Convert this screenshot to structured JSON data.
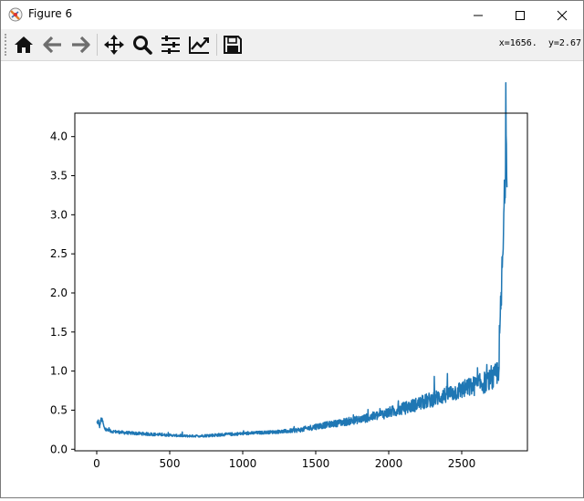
{
  "window": {
    "title": "Figure 6",
    "controls": {
      "minimize": "minimize-icon",
      "maximize": "maximize-icon",
      "close": "close-icon"
    }
  },
  "toolbar": {
    "buttons": [
      {
        "name": "home",
        "icon": "home-icon"
      },
      {
        "name": "back",
        "icon": "arrow-left-icon"
      },
      {
        "name": "forward",
        "icon": "arrow-right-icon"
      },
      {
        "name": "pan",
        "icon": "move-icon"
      },
      {
        "name": "zoom",
        "icon": "zoom-icon"
      },
      {
        "name": "configure-subplots",
        "icon": "sliders-icon"
      },
      {
        "name": "edit-axis",
        "icon": "line-chart-icon"
      },
      {
        "name": "save",
        "icon": "save-icon"
      }
    ],
    "coords": "x=1656.  y=2.67"
  },
  "chart_data": {
    "type": "line",
    "title": "",
    "xlabel": "",
    "ylabel": "",
    "xlim": [
      -150,
      2950
    ],
    "ylim": [
      -0.02,
      4.3
    ],
    "xticks": [
      0,
      500,
      1000,
      1500,
      2000,
      2500
    ],
    "yticks": [
      0.0,
      0.5,
      1.0,
      1.5,
      2.0,
      2.5,
      3.0,
      3.5,
      4.0
    ],
    "color": "#1f77b4",
    "series": [
      {
        "x": [
          0,
          10,
          20,
          30,
          40,
          50,
          60,
          80,
          100,
          150,
          200,
          300,
          400,
          500,
          600,
          700,
          800,
          900,
          1000,
          1100,
          1200,
          1300,
          1400,
          1500,
          1600,
          1700,
          1800,
          1900,
          2000,
          2100,
          2200,
          2300,
          2400,
          2500,
          2600,
          2700,
          2720,
          2750,
          2760,
          2770,
          2780,
          2790,
          2795,
          2800,
          2805,
          2810
        ],
        "y": [
          0.33,
          0.36,
          0.3,
          0.38,
          0.36,
          0.28,
          0.25,
          0.24,
          0.23,
          0.22,
          0.21,
          0.2,
          0.19,
          0.18,
          0.17,
          0.17,
          0.18,
          0.19,
          0.2,
          0.21,
          0.22,
          0.23,
          0.25,
          0.29,
          0.32,
          0.35,
          0.38,
          0.42,
          0.47,
          0.52,
          0.58,
          0.64,
          0.7,
          0.76,
          0.82,
          0.88,
          0.9,
          1.0,
          1.4,
          1.9,
          2.4,
          2.9,
          3.3,
          3.8,
          4.12,
          3.5
        ],
        "noise": [
          0.03,
          0.03,
          0.03,
          0.03,
          0.03,
          0.02,
          0.02,
          0.02,
          0.02,
          0.02,
          0.02,
          0.02,
          0.02,
          0.015,
          0.015,
          0.015,
          0.02,
          0.02,
          0.02,
          0.02,
          0.02,
          0.025,
          0.03,
          0.04,
          0.04,
          0.05,
          0.05,
          0.06,
          0.07,
          0.08,
          0.09,
          0.1,
          0.11,
          0.12,
          0.13,
          0.15,
          0.15,
          0.2,
          0.3,
          0.3,
          0.35,
          0.4,
          0.4,
          0.4,
          0.2,
          0.3
        ]
      }
    ]
  }
}
